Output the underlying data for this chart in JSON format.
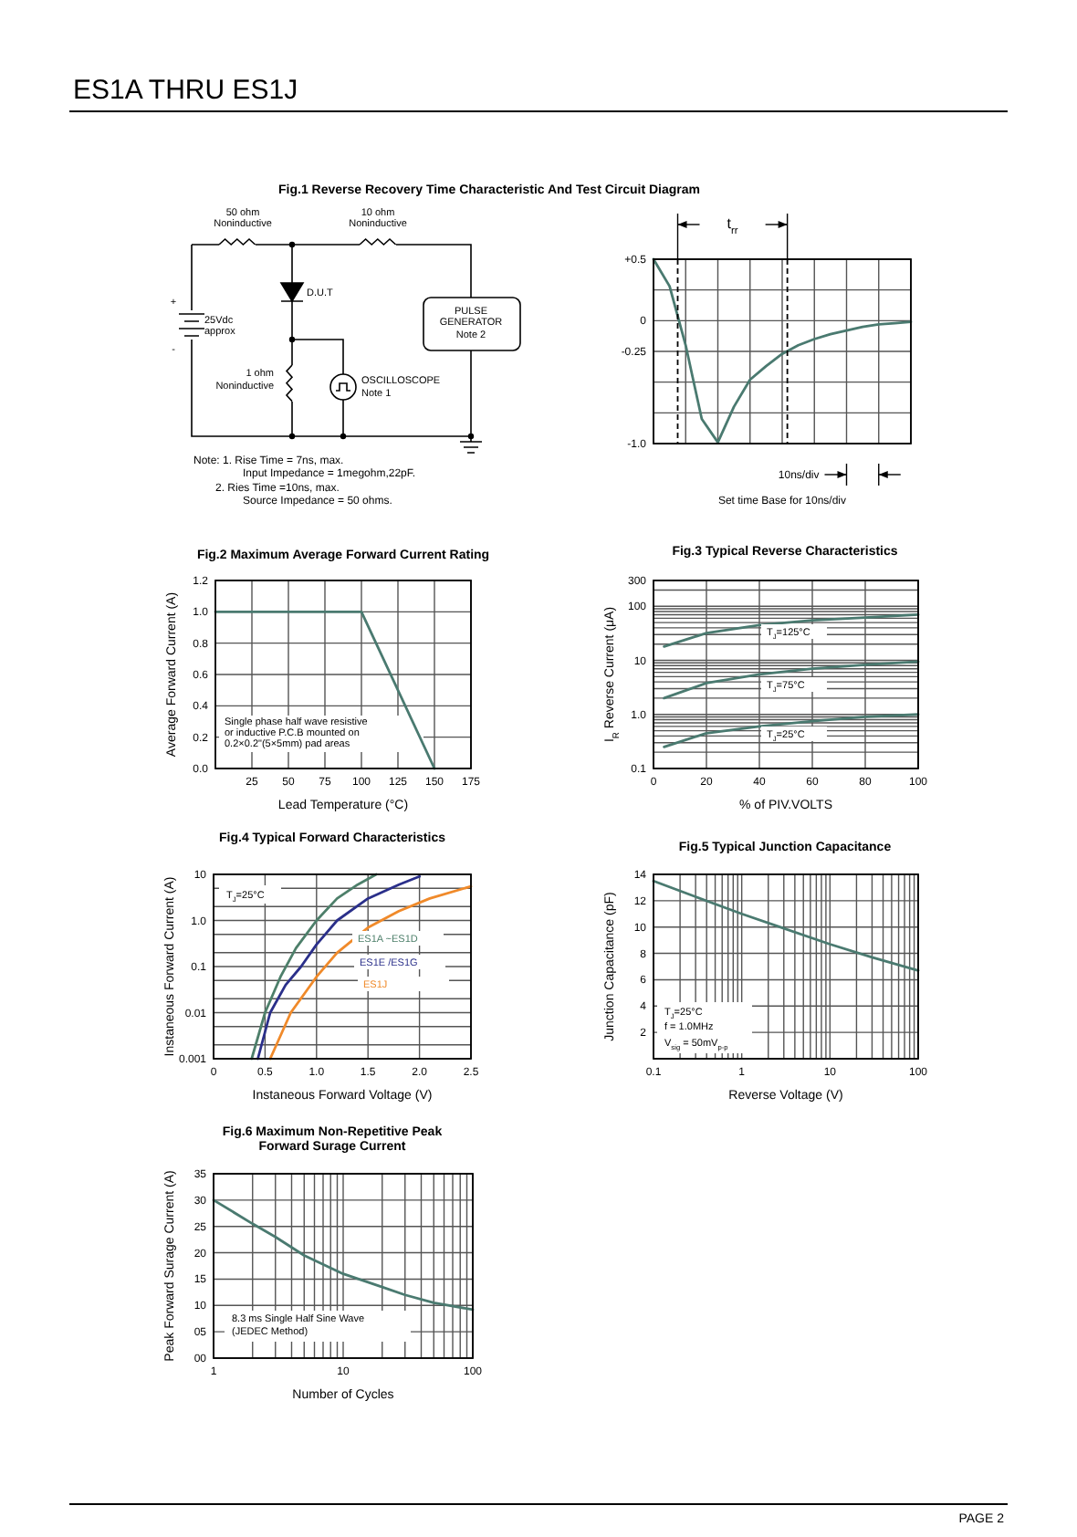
{
  "chart_data": [
    {
      "type": "other",
      "title": "ES1A THRU ES1J",
      "annotations": [
        "50 ohm",
        "Noninductive",
        "10 ohm",
        "Noninductive",
        "D.U.T",
        "+",
        "-",
        "25Vdc",
        "approx",
        "PULSE",
        "GENERATOR",
        "Note 2",
        "1 ohm",
        "Noninductive",
        "OSCILLOSCOPE",
        "Note 1",
        "Note:  1. Rise Time = 7ns, max.",
        "Input Impedance = 1megohm,22pF.",
        "2. Ries Time =10ns, max.",
        "Source Impedance = 50 ohms.",
        "PAGE 2"
      ]
    },
    {
      "type": "line",
      "title": "Fig.1  Reverse Recovery Time Characteristic And Test Circuit Diagram",
      "categories": [
        null,
        null,
        null,
        null,
        null,
        null,
        null,
        null,
        null,
        null,
        null,
        null,
        null,
        null,
        null,
        null,
        null
      ],
      "series": [
        {
          "color": "#4a7a70",
          "values": [
            0.5,
            0.28,
            -0.2,
            -0.8,
            -0.99,
            -0.7,
            -0.48,
            -0.37,
            -0.27,
            -0.2,
            -0.15,
            -0.11,
            -0.08,
            -0.05,
            -0.03,
            -0.02,
            -0.01
          ]
        }
      ],
      "ylim": [
        -1.0,
        0.5
      ],
      "yticks": [
        {
          "value": 0.5,
          "label": "+0.5"
        },
        {
          "value": 0.25,
          "label": null
        },
        0,
        -0.25,
        {
          "value": -0.5,
          "label": null
        },
        {
          "value": -0.75,
          "label": null
        },
        {
          "value": -1,
          "label": "-1.0"
        }
      ],
      "tick_labels": "y",
      "grid": true,
      "legend": false,
      "annotations": [
        "t$_{rr}$",
        "10ns/div",
        "Set time Base for 10ns/div"
      ]
    },
    {
      "type": "line",
      "title": "Fig.2  Maximum Average Forward Current Rating",
      "xlabel": "Lead Temperature (°C)",
      "ylabel": "Average Forward Current  (A)",
      "x": [
        0,
        100,
        150
      ],
      "series": [
        {
          "color": "#4a7a70",
          "values": [
            1.0,
            1.0,
            0
          ]
        }
      ],
      "xlim": [
        0,
        175
      ],
      "xticks": [
        25,
        50,
        75,
        100,
        125,
        150,
        175
      ],
      "ylim": [
        0,
        1.2
      ],
      "yticks": [
        {
          "value": 0,
          "label": "0.0"
        },
        0.2,
        0.4,
        0.6,
        0.8,
        {
          "value": 1,
          "label": "1.0"
        },
        1.2
      ],
      "grid": true,
      "legend": false,
      "annotations": [
        "Single phase half wave resistive",
        "or inductive P.C.B mounted on",
        "0.2×0.2\"(5×5mm) pad areas"
      ]
    },
    {
      "type": "line",
      "title": "Fig.3  Typical Reverse Characteristics",
      "xlabel": "% of PIV.VOLTS",
      "ylabel": "I$_{R}$ Reverse Current (μA)",
      "x": [
        4,
        20,
        40,
        60,
        80,
        100
      ],
      "series": [
        {
          "name": "T$_{J}$=125°C",
          "color": "#4a7a70",
          "values": [
            18,
            32,
            45,
            55,
            62,
            70
          ]
        },
        {
          "name": "T$_{J}$=75°C",
          "color": "#4a7a70",
          "values": [
            2,
            3.8,
            5.5,
            7,
            8.3,
            9.5
          ]
        },
        {
          "name": "T$_{J}$=25°C",
          "color": "#4a7a70",
          "values": [
            0.25,
            0.45,
            0.6,
            0.75,
            0.9,
            1.0
          ]
        }
      ],
      "xlim": [
        0,
        100
      ],
      "xticks": [
        0,
        20,
        40,
        60,
        80,
        100
      ],
      "ylim": [
        0.1,
        300
      ],
      "log": "y",
      "yticks": [
        0.1,
        {
          "value": 0.2,
          "label": null
        },
        {
          "value": 0.3,
          "label": null
        },
        {
          "value": 0.4,
          "label": null
        },
        {
          "value": 0.5,
          "label": null
        },
        {
          "value": 0.6,
          "label": null
        },
        {
          "value": 0.7,
          "label": null
        },
        {
          "value": 0.8,
          "label": null
        },
        {
          "value": 0.9,
          "label": null
        },
        {
          "value": 1,
          "label": "1.0"
        },
        {
          "value": 2,
          "label": null
        },
        {
          "value": 3,
          "label": null
        },
        {
          "value": 4,
          "label": null
        },
        {
          "value": 5,
          "label": null
        },
        {
          "value": 6,
          "label": null
        },
        {
          "value": 7,
          "label": null
        },
        {
          "value": 8,
          "label": null
        },
        {
          "value": 9,
          "label": null
        },
        10,
        {
          "value": 20,
          "label": null
        },
        {
          "value": 30,
          "label": null
        },
        {
          "value": 40,
          "label": null
        },
        {
          "value": 50,
          "label": null
        },
        {
          "value": 60,
          "label": null
        },
        {
          "value": 70,
          "label": null
        },
        {
          "value": 80,
          "label": null
        },
        {
          "value": 90,
          "label": null
        },
        100,
        {
          "value": 200,
          "label": null
        },
        300
      ],
      "grid": true,
      "legend": false
    },
    {
      "type": "line",
      "title": "Fig.4  Typical Forward Characteristics",
      "xlabel": "Instaneous Forward Voltage (V)",
      "ylabel": "Instaneous Forward Current (A)",
      "series": [
        {
          "name": "ES1A  ~ES1D",
          "color": "#4d7f6a",
          "x": [
            0.37,
            0.5,
            0.65,
            0.8,
            1.0,
            1.2,
            1.4,
            1.58
          ],
          "values": [
            0.001,
            0.01,
            0.06,
            0.25,
            1.0,
            3,
            6,
            10
          ]
        },
        {
          "name": "ES1E  /ES1G",
          "color": "#2a2f8a",
          "x": [
            0.43,
            0.55,
            0.7,
            0.85,
            1.0,
            1.2,
            1.5,
            1.8,
            2.0
          ],
          "values": [
            0.001,
            0.01,
            0.04,
            0.1,
            0.3,
            1.0,
            3,
            6,
            9
          ]
        },
        {
          "name": "ES1J",
          "color": "#f08a2a",
          "x": [
            0.55,
            0.75,
            1.0,
            1.2,
            1.5,
            1.8,
            2.1,
            2.5
          ],
          "values": [
            0.001,
            0.01,
            0.06,
            0.2,
            0.7,
            1.6,
            3,
            5.5
          ]
        }
      ],
      "xlim": [
        0,
        2.5
      ],
      "xticks": [
        0,
        0.5,
        {
          "value": 1,
          "label": "1.0"
        },
        1.5,
        {
          "value": 2,
          "label": "2.0"
        },
        2.5
      ],
      "ylim": [
        0.001,
        10
      ],
      "log": "y",
      "yticks": [
        0.001,
        {
          "value": 0.002,
          "label": null
        },
        {
          "value": 0.005,
          "label": null
        },
        0.01,
        {
          "value": 0.02,
          "label": null
        },
        {
          "value": 0.05,
          "label": null
        },
        0.1,
        {
          "value": 0.2,
          "label": null
        },
        {
          "value": 0.5,
          "label": null
        },
        {
          "value": 1,
          "label": "1.0"
        },
        {
          "value": 2,
          "label": null
        },
        {
          "value": 5,
          "label": null
        },
        10
      ],
      "grid": true,
      "legend": false,
      "annotations": [
        "T$_{J}$=25°C"
      ]
    },
    {
      "type": "line",
      "title": "Fig.5  Typical Junction Capacitance",
      "xlabel": "Reverse  Voltage (V)",
      "ylabel": "Junction Capacitance (pF)",
      "x": [
        0.1,
        0.3,
        1,
        3,
        10,
        30,
        100
      ],
      "series": [
        {
          "color": "#4a7a70",
          "values": [
            13.5,
            12.3,
            11,
            9.9,
            8.7,
            7.7,
            6.7
          ]
        }
      ],
      "xlim": [
        0.1,
        100
      ],
      "log": "x",
      "xticks": [
        0.1,
        {
          "value": 0.2,
          "label": null
        },
        {
          "value": 0.3,
          "label": null
        },
        {
          "value": 0.4,
          "label": null
        },
        {
          "value": 0.5,
          "label": null
        },
        {
          "value": 0.6,
          "label": null
        },
        {
          "value": 0.7,
          "label": null
        },
        {
          "value": 0.8,
          "label": null
        },
        {
          "value": 0.9,
          "label": null
        },
        1,
        {
          "value": 2,
          "label": null
        },
        {
          "value": 3,
          "label": null
        },
        {
          "value": 4,
          "label": null
        },
        {
          "value": 5,
          "label": null
        },
        {
          "value": 6,
          "label": null
        },
        {
          "value": 7,
          "label": null
        },
        {
          "value": 8,
          "label": null
        },
        {
          "value": 9,
          "label": null
        },
        10,
        {
          "value": 20,
          "label": null
        },
        {
          "value": 30,
          "label": null
        },
        {
          "value": 40,
          "label": null
        },
        {
          "value": 50,
          "label": null
        },
        {
          "value": 60,
          "label": null
        },
        {
          "value": 70,
          "label": null
        },
        {
          "value": 80,
          "label": null
        },
        {
          "value": 90,
          "label": null
        },
        100
      ],
      "ylim": [
        0,
        14
      ],
      "yticks": [
        {
          "value": 0,
          "label": null
        },
        2,
        4,
        6,
        8,
        10,
        12,
        14
      ],
      "grid": true,
      "legend": false,
      "annotations": [
        "T$_{J}$=25°C",
        "f = 1.0MHz",
        "V$_{sig}$ = 50mV$_{p-p}$"
      ]
    },
    {
      "type": "line",
      "title": "Fig.6  Maximum Non-Repetitive Peak Forward Surage Current",
      "xlabel": "Number of Cycles",
      "ylabel": "Peak Forward Surage Current (A)",
      "x": [
        1,
        2,
        3,
        5,
        10,
        20,
        30,
        50,
        100
      ],
      "series": [
        {
          "color": "#4a7a70",
          "values": [
            30,
            25.5,
            23,
            19.5,
            16,
            13.5,
            12,
            10.5,
            9.2
          ]
        }
      ],
      "xlim": [
        1,
        100
      ],
      "log": "x",
      "xticks": [
        1,
        {
          "value": 2,
          "label": null
        },
        {
          "value": 3,
          "label": null
        },
        {
          "value": 4,
          "label": null
        },
        {
          "value": 5,
          "label": null
        },
        {
          "value": 6,
          "label": null
        },
        {
          "value": 7,
          "label": null
        },
        {
          "value": 8,
          "label": null
        },
        {
          "value": 9,
          "label": null
        },
        10,
        {
          "value": 20,
          "label": null
        },
        {
          "value": 30,
          "label": null
        },
        {
          "value": 40,
          "label": null
        },
        {
          "value": 50,
          "label": null
        },
        {
          "value": 60,
          "label": null
        },
        {
          "value": 70,
          "label": null
        },
        {
          "value": 80,
          "label": null
        },
        {
          "value": 90,
          "label": null
        },
        100
      ],
      "ylim": [
        0,
        35
      ],
      "yticks": [
        {
          "value": 0,
          "label": "00"
        },
        {
          "value": 5,
          "label": "05"
        },
        10,
        15,
        20,
        25,
        30,
        35
      ],
      "grid": true,
      "legend": false,
      "annotations": [
        "8.3 ms Single Half Sine Wave",
        "(JEDEC Method)"
      ]
    }
  ]
}
